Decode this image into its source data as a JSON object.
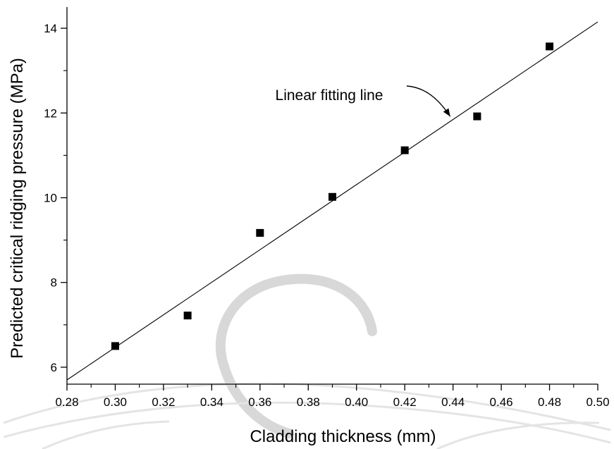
{
  "chart_data": {
    "type": "scatter",
    "title": "",
    "xlabel": "Cladding thickness (mm)",
    "ylabel": "Predicted critical ridging pressure (MPa)",
    "xlim": [
      0.28,
      0.5
    ],
    "ylim": [
      5.6,
      14.5
    ],
    "x_ticks": [
      "0.28",
      "0.30",
      "0.32",
      "0.34",
      "0.36",
      "0.38",
      "0.40",
      "0.42",
      "0.44",
      "0.46",
      "0.48",
      "0.50"
    ],
    "x_tick_values": [
      0.28,
      0.3,
      0.32,
      0.34,
      0.36,
      0.38,
      0.4,
      0.42,
      0.44,
      0.46,
      0.48,
      0.5
    ],
    "y_ticks": [
      "6",
      "8",
      "10",
      "12",
      "14"
    ],
    "y_tick_values": [
      6,
      8,
      10,
      12,
      14
    ],
    "grid": false,
    "series": [
      {
        "marker": "square",
        "color": "#000000",
        "x": [
          0.3,
          0.33,
          0.36,
          0.39,
          0.42,
          0.45,
          0.48
        ],
        "y": [
          6.5,
          7.22,
          9.17,
          10.02,
          11.12,
          11.92,
          13.57
        ]
      }
    ],
    "fit_line": {
      "x": [
        0.28,
        0.5
      ],
      "y": [
        5.7,
        14.15
      ],
      "color": "#000000"
    },
    "annotations": [
      {
        "text": "Linear fitting line",
        "arrow_to": [
          0.44,
          11.85
        ]
      }
    ]
  }
}
